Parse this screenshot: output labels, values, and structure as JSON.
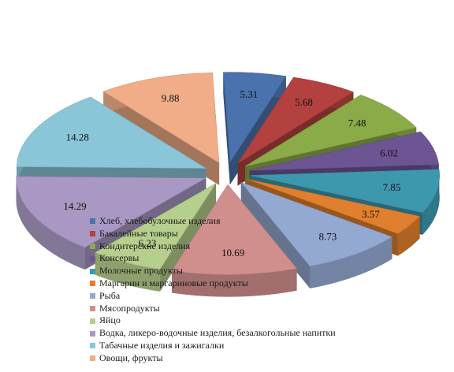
{
  "chart_data": {
    "type": "pie",
    "style": "3d-exploded",
    "title": "",
    "legend_position": "bottom-left-overlay",
    "series": [
      {
        "label": "Хлеб, хлебобулочные изделия",
        "value": 5.31,
        "value_label": "5.31",
        "color": "#4a72ac"
      },
      {
        "label": "Бакалейные товары",
        "value": 5.68,
        "value_label": "5.68",
        "color": "#b2413f"
      },
      {
        "label": "Кондитерские изделия",
        "value": 7.48,
        "value_label": "7.48",
        "color": "#8bab48"
      },
      {
        "label": "Консервы",
        "value": 6.02,
        "value_label": "6.02",
        "color": "#6d5493"
      },
      {
        "label": "Молочные продукты",
        "value": 7.85,
        "value_label": "7.85",
        "color": "#3e98ad"
      },
      {
        "label": "Маргарин и маргариновые продукты",
        "value": 3.57,
        "value_label": "3.57",
        "color": "#e07f2d"
      },
      {
        "label": "Рыба",
        "value": 8.73,
        "value_label": "8.73",
        "color": "#94a9d2"
      },
      {
        "label": "Мясопродукты",
        "value": 10.69,
        "value_label": "10.69",
        "color": "#d08e8d"
      },
      {
        "label": "Яйцо",
        "value": 6.23,
        "value_label": "6.23",
        "color": "#b6cf8c"
      },
      {
        "label": "Водка, ликеро-водочные изделия, безалкогольные напитки",
        "value": 14.29,
        "value_label": "14.29",
        "color": "#a898c3"
      },
      {
        "label": "Табачные изделия и зажигалки",
        "value": 14.28,
        "value_label": "14.28",
        "color": "#8ac5d8"
      },
      {
        "label": "Овощи, фрукты",
        "value": 9.88,
        "value_label": "9.88",
        "color": "#f0ad88"
      }
    ]
  }
}
